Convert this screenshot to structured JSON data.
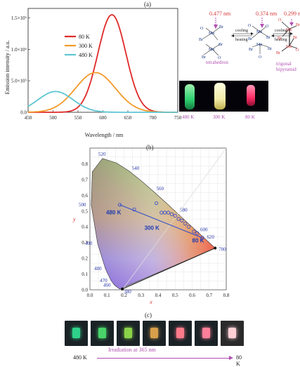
{
  "panels": {
    "a": "(a)",
    "b": "(b)",
    "c": "(c)"
  },
  "chart_data": [
    {
      "type": "line",
      "xlabel": "Wavelength / nm",
      "ylabel": "Emission intensity / a.u.",
      "xlim": [
        450,
        750
      ],
      "ylim": [
        0,
        1.65
      ],
      "xticks": [
        "450",
        "500",
        "550",
        "600",
        "650",
        "700",
        "750"
      ],
      "yticks": [
        "0.0",
        "5.0×10⁵",
        "1.0×10⁶",
        "1.5×10⁶"
      ],
      "legend_position": "top-left",
      "series": [
        {
          "name": "80 K",
          "color": "#e02828",
          "peak": 618,
          "amp": 1.55,
          "width": 28
        },
        {
          "name": "300 K",
          "color": "#f39a2a",
          "peak": 585,
          "amp": 0.63,
          "width": 40
        },
        {
          "name": "480 K",
          "color": "#5cc6d3",
          "peak": 505,
          "amp": 0.33,
          "width": 35
        }
      ]
    },
    {
      "type": "scatter",
      "xlabel": "x",
      "ylabel": "y",
      "xlim": [
        0,
        0.8
      ],
      "ylim": [
        0,
        0.9
      ],
      "xticks": [
        "0.0",
        "0.1",
        "0.2",
        "0.3",
        "0.4",
        "0.5",
        "0.6",
        "0.7",
        "0.8"
      ],
      "yticks": [
        "0.0",
        "0.1",
        "0.2",
        "0.3",
        "0.4",
        "0.5",
        "0.6",
        "0.7",
        "0.8"
      ],
      "wavelength_labels": [
        "380",
        "460",
        "470",
        "480",
        "490",
        "500",
        "520",
        "540",
        "560",
        "580",
        "600",
        "620",
        "700"
      ],
      "points": [
        {
          "x": 0.175,
          "y": 0.54
        },
        {
          "x": 0.26,
          "y": 0.51
        },
        {
          "x": 0.39,
          "y": 0.55
        },
        {
          "x": 0.42,
          "y": 0.49
        },
        {
          "x": 0.44,
          "y": 0.49
        },
        {
          "x": 0.46,
          "y": 0.49
        },
        {
          "x": 0.48,
          "y": 0.48
        },
        {
          "x": 0.5,
          "y": 0.47
        },
        {
          "x": 0.52,
          "y": 0.45
        },
        {
          "x": 0.54,
          "y": 0.44
        },
        {
          "x": 0.56,
          "y": 0.42
        },
        {
          "x": 0.58,
          "y": 0.4
        },
        {
          "x": 0.61,
          "y": 0.37
        },
        {
          "x": 0.63,
          "y": 0.36
        },
        {
          "x": 0.66,
          "y": 0.33
        }
      ],
      "point_labels": [
        "480 K",
        "300 K",
        "80 K"
      ]
    }
  ],
  "molecules": {
    "d1": "0.477 nm",
    "d2": "0.374 nm",
    "d3": "0.299 nm",
    "step1_top": "cooling",
    "step1_bottom": "heating",
    "step2_top": "cooling",
    "step2_bottom": "heating",
    "tetrahedron": "tetrahedron",
    "trigonal1": "trigonal",
    "trigonal2": "bipyramid",
    "mn": "Mn",
    "br": "Br",
    "o": "O"
  },
  "vials": {
    "labels": [
      "480 K",
      "300 K",
      "80 K"
    ],
    "colors": [
      "#3fd07a",
      "#e9f1b0",
      "#ff3f78"
    ]
  },
  "irradiation": {
    "text": "Irradiation at 365 nm",
    "left": "480 K",
    "right": "80 K",
    "colors": [
      "#2fd28a",
      "#4ad26a",
      "#8ad24a",
      "#d8a04a",
      "#ff7a8a",
      "#ff7f9a",
      "#ffd0d6"
    ]
  }
}
